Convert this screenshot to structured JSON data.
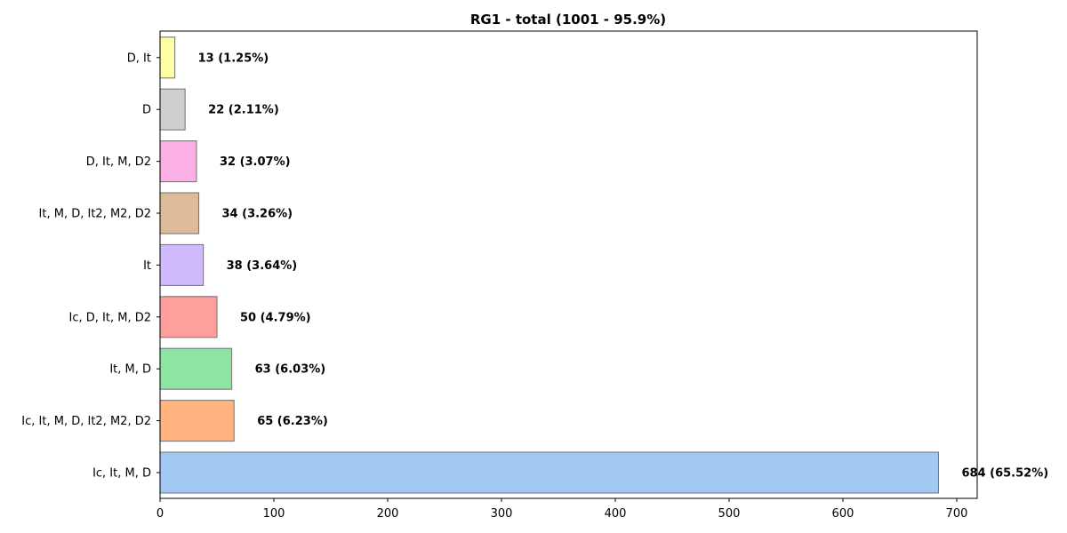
{
  "chart_data": {
    "type": "bar",
    "orientation": "horizontal",
    "title": "RG1 - total (1001 - 95.9%)",
    "xlabel": "",
    "ylabel": "",
    "xlim": [
      0,
      718
    ],
    "x_ticks": [
      0,
      100,
      200,
      300,
      400,
      500,
      600,
      700
    ],
    "grid": false,
    "categories": [
      "Ic, It, M, D",
      "Ic, It, M, D, It2, M2, D2",
      "It, M, D",
      "Ic, D, It, M, D2",
      "It",
      "It, M, D, It2, M2, D2",
      "D, It, M, D2",
      "D",
      "D, It"
    ],
    "values": [
      684,
      65,
      63,
      50,
      38,
      34,
      32,
      22,
      13
    ],
    "data_labels": [
      "684 (65.52%)",
      "65 (6.23%)",
      "63 (6.03%)",
      "50 (4.79%)",
      "38 (3.64%)",
      "34 (3.26%)",
      "32 (3.07%)",
      "22 (2.11%)",
      "13 (1.25%)"
    ],
    "colors": [
      "#a1c9f4",
      "#ffb482",
      "#8de5a1",
      "#ff9f9b",
      "#d0bbff",
      "#debb9b",
      "#fab0e4",
      "#cfcfcf",
      "#fffea3"
    ]
  }
}
